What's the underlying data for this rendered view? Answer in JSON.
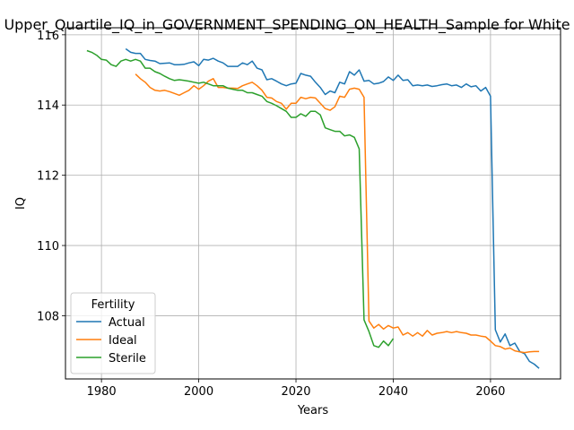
{
  "chart_data": {
    "type": "line",
    "title": "Upper_Quartile_IQ_in_GOVERNMENT_SPENDING_ON_HEALTH_Sample for White",
    "xlabel": "Years",
    "ylabel": "IQ",
    "xlim": [
      1972.6,
      2074.4
    ],
    "ylim": [
      106.2,
      116.2
    ],
    "xticks": [
      1980,
      2000,
      2020,
      2040,
      2060
    ],
    "yticks": [
      108,
      110,
      112,
      114,
      116
    ],
    "grid": true,
    "legend": {
      "title": "Fertility",
      "placement": "lower-left",
      "entries": [
        "Actual",
        "Ideal",
        "Sterile"
      ]
    },
    "series": [
      {
        "name": "Actual",
        "color": "#1f77b4",
        "x": [
          1985,
          1986,
          1987,
          1988,
          1989,
          1990,
          1991,
          1992,
          1993,
          1994,
          1995,
          1996,
          1997,
          1998,
          1999,
          2000,
          2001,
          2002,
          2003,
          2004,
          2005,
          2006,
          2007,
          2008,
          2009,
          2010,
          2011,
          2012,
          2013,
          2014,
          2015,
          2016,
          2017,
          2018,
          2019,
          2020,
          2021,
          2022,
          2023,
          2024,
          2025,
          2026,
          2027,
          2028,
          2029,
          2030,
          2031,
          2032,
          2033,
          2034,
          2035,
          2036,
          2037,
          2038,
          2039,
          2040,
          2041,
          2042,
          2043,
          2044,
          2045,
          2046,
          2047,
          2048,
          2049,
          2050,
          2051,
          2052,
          2053,
          2054,
          2055,
          2056,
          2057,
          2058,
          2059,
          2060,
          2061,
          2062,
          2063,
          2064,
          2065,
          2066,
          2067,
          2068,
          2069,
          2070
        ],
        "y": [
          115.6,
          115.5,
          115.47,
          115.47,
          115.3,
          115.27,
          115.25,
          115.18,
          115.19,
          115.2,
          115.15,
          115.15,
          115.16,
          115.2,
          115.23,
          115.12,
          115.3,
          115.28,
          115.33,
          115.25,
          115.2,
          115.1,
          115.1,
          115.1,
          115.2,
          115.15,
          115.25,
          115.05,
          115.0,
          114.72,
          114.75,
          114.68,
          114.6,
          114.55,
          114.6,
          114.62,
          114.9,
          114.85,
          114.82,
          114.65,
          114.5,
          114.3,
          114.4,
          114.35,
          114.65,
          114.6,
          114.95,
          114.85,
          115.0,
          114.68,
          114.7,
          114.6,
          114.62,
          114.67,
          114.8,
          114.7,
          114.85,
          114.7,
          114.72,
          114.55,
          114.57,
          114.55,
          114.57,
          114.53,
          114.55,
          114.58,
          114.6,
          114.55,
          114.57,
          114.5,
          114.6,
          114.52,
          114.55,
          114.4,
          114.5,
          114.25,
          107.6,
          107.25,
          107.48,
          107.15,
          107.22,
          106.98,
          106.92,
          106.7,
          106.62,
          106.5
        ]
      },
      {
        "name": "Ideal",
        "color": "#ff7f0e",
        "x": [
          1987,
          1988,
          1989,
          1990,
          1991,
          1992,
          1993,
          1994,
          1995,
          1996,
          1997,
          1998,
          1999,
          2000,
          2001,
          2002,
          2003,
          2004,
          2005,
          2006,
          2007,
          2008,
          2009,
          2010,
          2011,
          2012,
          2013,
          2014,
          2015,
          2016,
          2017,
          2018,
          2019,
          2020,
          2021,
          2022,
          2023,
          2024,
          2025,
          2026,
          2027,
          2028,
          2029,
          2030,
          2031,
          2032,
          2033,
          2034,
          2035,
          2036,
          2037,
          2038,
          2039,
          2040,
          2041,
          2042,
          2043,
          2044,
          2045,
          2046,
          2047,
          2048,
          2049,
          2050,
          2051,
          2052,
          2053,
          2054,
          2055,
          2056,
          2057,
          2058,
          2059,
          2060,
          2061,
          2062,
          2063,
          2064,
          2065,
          2066,
          2067,
          2068,
          2069,
          2070
        ],
        "y": [
          114.88,
          114.75,
          114.65,
          114.5,
          114.42,
          114.4,
          114.42,
          114.38,
          114.33,
          114.28,
          114.35,
          114.42,
          114.55,
          114.45,
          114.55,
          114.68,
          114.75,
          114.5,
          114.5,
          114.48,
          114.48,
          114.47,
          114.55,
          114.6,
          114.65,
          114.55,
          114.42,
          114.22,
          114.2,
          114.1,
          114.05,
          113.88,
          114.05,
          114.05,
          114.22,
          114.18,
          114.22,
          114.2,
          114.05,
          113.9,
          113.85,
          113.95,
          114.25,
          114.22,
          114.45,
          114.48,
          114.45,
          114.22,
          107.85,
          107.65,
          107.75,
          107.62,
          107.72,
          107.65,
          107.68,
          107.45,
          107.52,
          107.42,
          107.52,
          107.42,
          107.58,
          107.45,
          107.5,
          107.52,
          107.55,
          107.52,
          107.55,
          107.52,
          107.5,
          107.45,
          107.45,
          107.42,
          107.4,
          107.28,
          107.15,
          107.12,
          107.05,
          107.08,
          107.0,
          106.97,
          106.95,
          106.97,
          106.98,
          106.98
        ]
      },
      {
        "name": "Sterile",
        "color": "#2ca02c",
        "x": [
          1977,
          1978,
          1979,
          1980,
          1981,
          1982,
          1983,
          1984,
          1985,
          1986,
          1987,
          1988,
          1989,
          1990,
          1991,
          1992,
          1993,
          1994,
          1995,
          1996,
          1997,
          1998,
          1999,
          2000,
          2001,
          2002,
          2003,
          2004,
          2005,
          2006,
          2007,
          2008,
          2009,
          2010,
          2011,
          2012,
          2013,
          2014,
          2015,
          2016,
          2017,
          2018,
          2019,
          2020,
          2021,
          2022,
          2023,
          2024,
          2025,
          2026,
          2027,
          2028,
          2029,
          2030,
          2031,
          2032,
          2033,
          2034,
          2035,
          2036,
          2037,
          2038,
          2039,
          2040
        ],
        "y": [
          115.55,
          115.5,
          115.42,
          115.3,
          115.28,
          115.15,
          115.1,
          115.25,
          115.3,
          115.25,
          115.3,
          115.25,
          115.05,
          115.05,
          114.95,
          114.9,
          114.82,
          114.75,
          114.7,
          114.72,
          114.7,
          114.68,
          114.65,
          114.62,
          114.65,
          114.6,
          114.55,
          114.55,
          114.55,
          114.48,
          114.45,
          114.42,
          114.42,
          114.35,
          114.35,
          114.3,
          114.25,
          114.1,
          114.05,
          113.98,
          113.9,
          113.82,
          113.65,
          113.65,
          113.75,
          113.68,
          113.82,
          113.82,
          113.72,
          113.35,
          113.3,
          113.25,
          113.25,
          113.12,
          113.15,
          113.08,
          112.75,
          107.88,
          107.55,
          107.15,
          107.1,
          107.28,
          107.15,
          107.35
        ]
      }
    ]
  }
}
